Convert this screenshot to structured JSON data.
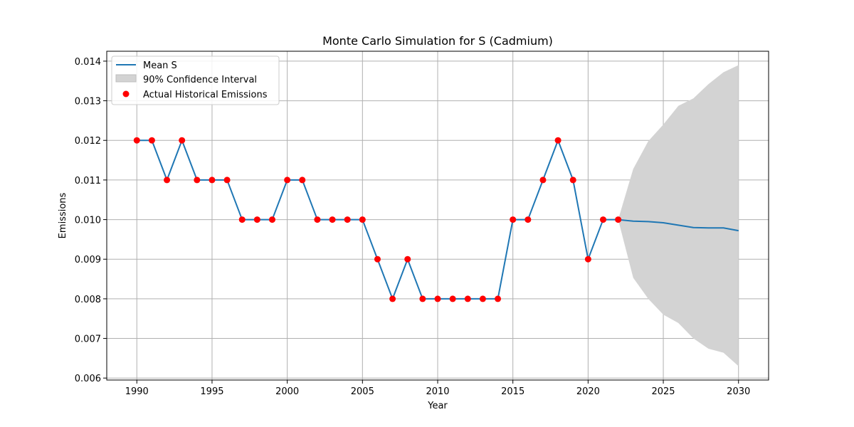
{
  "chart_data": {
    "type": "line",
    "title": "Monte Carlo Simulation for S (Cadmium)",
    "xlabel": "Year",
    "ylabel": "Emissions",
    "xlim": [
      1988,
      2032
    ],
    "ylim": [
      0.00595,
      0.01425
    ],
    "xticks": [
      1990,
      1995,
      2000,
      2005,
      2010,
      2015,
      2020,
      2025,
      2030
    ],
    "yticks": [
      0.006,
      0.007,
      0.008,
      0.009,
      0.01,
      0.011,
      0.012,
      0.013,
      0.014
    ],
    "ytick_labels": [
      "0.006",
      "0.007",
      "0.008",
      "0.009",
      "0.010",
      "0.011",
      "0.012",
      "0.013",
      "0.014"
    ],
    "grid": true,
    "legend_position": "top-left",
    "series": [
      {
        "name": "Mean S",
        "kind": "line",
        "color": "#1f77b4",
        "x": [
          1990,
          1991,
          1992,
          1993,
          1994,
          1995,
          1996,
          1997,
          1998,
          1999,
          2000,
          2001,
          2002,
          2003,
          2004,
          2005,
          2006,
          2007,
          2008,
          2009,
          2010,
          2011,
          2012,
          2013,
          2014,
          2015,
          2016,
          2017,
          2018,
          2019,
          2020,
          2021,
          2022,
          2023,
          2024,
          2025,
          2026,
          2027,
          2028,
          2029,
          2030
        ],
        "y": [
          0.012,
          0.012,
          0.011,
          0.012,
          0.011,
          0.011,
          0.011,
          0.01,
          0.01,
          0.01,
          0.011,
          0.011,
          0.01,
          0.01,
          0.01,
          0.01,
          0.009,
          0.008,
          0.009,
          0.008,
          0.008,
          0.008,
          0.008,
          0.008,
          0.008,
          0.01,
          0.01,
          0.011,
          0.012,
          0.011,
          0.009,
          0.01,
          0.01,
          0.00996,
          0.00995,
          0.00992,
          0.00986,
          0.0098,
          0.00979,
          0.00979,
          0.00972
        ]
      },
      {
        "name": "90% Confidence Interval",
        "kind": "band",
        "color": "#c8c8c8",
        "x": [
          2022,
          2023,
          2024,
          2025,
          2026,
          2027,
          2028,
          2029,
          2030
        ],
        "lower": [
          0.01,
          0.00853,
          0.008,
          0.0076,
          0.00739,
          0.007,
          0.00674,
          0.00664,
          0.0063
        ],
        "upper": [
          0.01,
          0.01128,
          0.01198,
          0.0124,
          0.01287,
          0.01306,
          0.01342,
          0.01372,
          0.0139
        ]
      },
      {
        "name": "Actual Historical Emissions",
        "kind": "scatter",
        "color": "#ff0000",
        "x": [
          1990,
          1991,
          1992,
          1993,
          1994,
          1995,
          1996,
          1997,
          1998,
          1999,
          2000,
          2001,
          2002,
          2003,
          2004,
          2005,
          2006,
          2007,
          2008,
          2009,
          2010,
          2011,
          2012,
          2013,
          2014,
          2015,
          2016,
          2017,
          2018,
          2019,
          2020,
          2021,
          2022
        ],
        "y": [
          0.012,
          0.012,
          0.011,
          0.012,
          0.011,
          0.011,
          0.011,
          0.01,
          0.01,
          0.01,
          0.011,
          0.011,
          0.01,
          0.01,
          0.01,
          0.01,
          0.009,
          0.008,
          0.009,
          0.008,
          0.008,
          0.008,
          0.008,
          0.008,
          0.008,
          0.01,
          0.01,
          0.011,
          0.012,
          0.011,
          0.009,
          0.01,
          0.01
        ]
      }
    ]
  }
}
